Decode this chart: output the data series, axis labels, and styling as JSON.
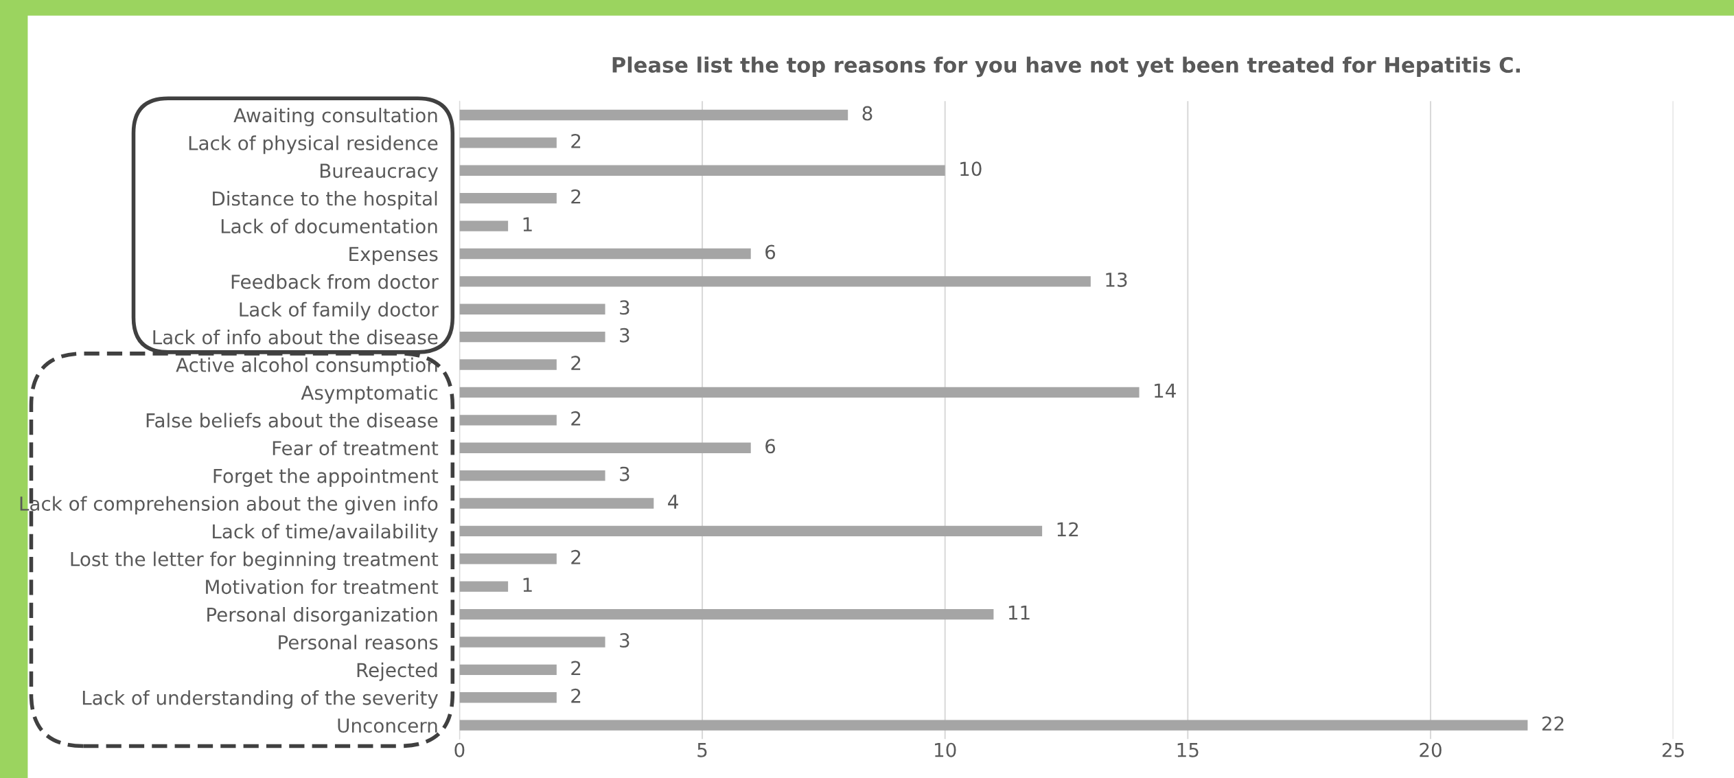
{
  "chart_data": {
    "type": "bar",
    "orientation": "horizontal",
    "title": "Please list the top reasons for you have not yet been treated for Hepatitis C.",
    "categories": [
      "Awaiting consultation",
      "Lack of physical residence",
      "Bureaucracy",
      "Distance to the hospital",
      "Lack of documentation",
      "Expenses",
      "Feedback from doctor",
      "Lack of family doctor",
      "Lack of info about the disease",
      "Active alcohol consumption",
      "Asymptomatic",
      "False beliefs about the disease",
      "Fear of treatment",
      "Forget the appointment",
      "Lack of comprehension about the given info",
      "Lack of time/availability",
      "Lost the letter for beginning treatment",
      "Motivation for treatment",
      "Personal disorganization",
      "Personal reasons",
      "Rejected",
      "Lack of understanding of the severity",
      "Unconcern"
    ],
    "values": [
      8,
      2,
      10,
      2,
      1,
      6,
      13,
      3,
      3,
      2,
      14,
      2,
      6,
      3,
      4,
      12,
      2,
      1,
      11,
      3,
      2,
      2,
      22
    ],
    "color": "#a5a5a5",
    "xlim": [
      0,
      25
    ],
    "xticks": [
      0,
      5,
      10,
      15,
      20,
      25
    ],
    "grid": "x",
    "data_labels": true
  }
}
